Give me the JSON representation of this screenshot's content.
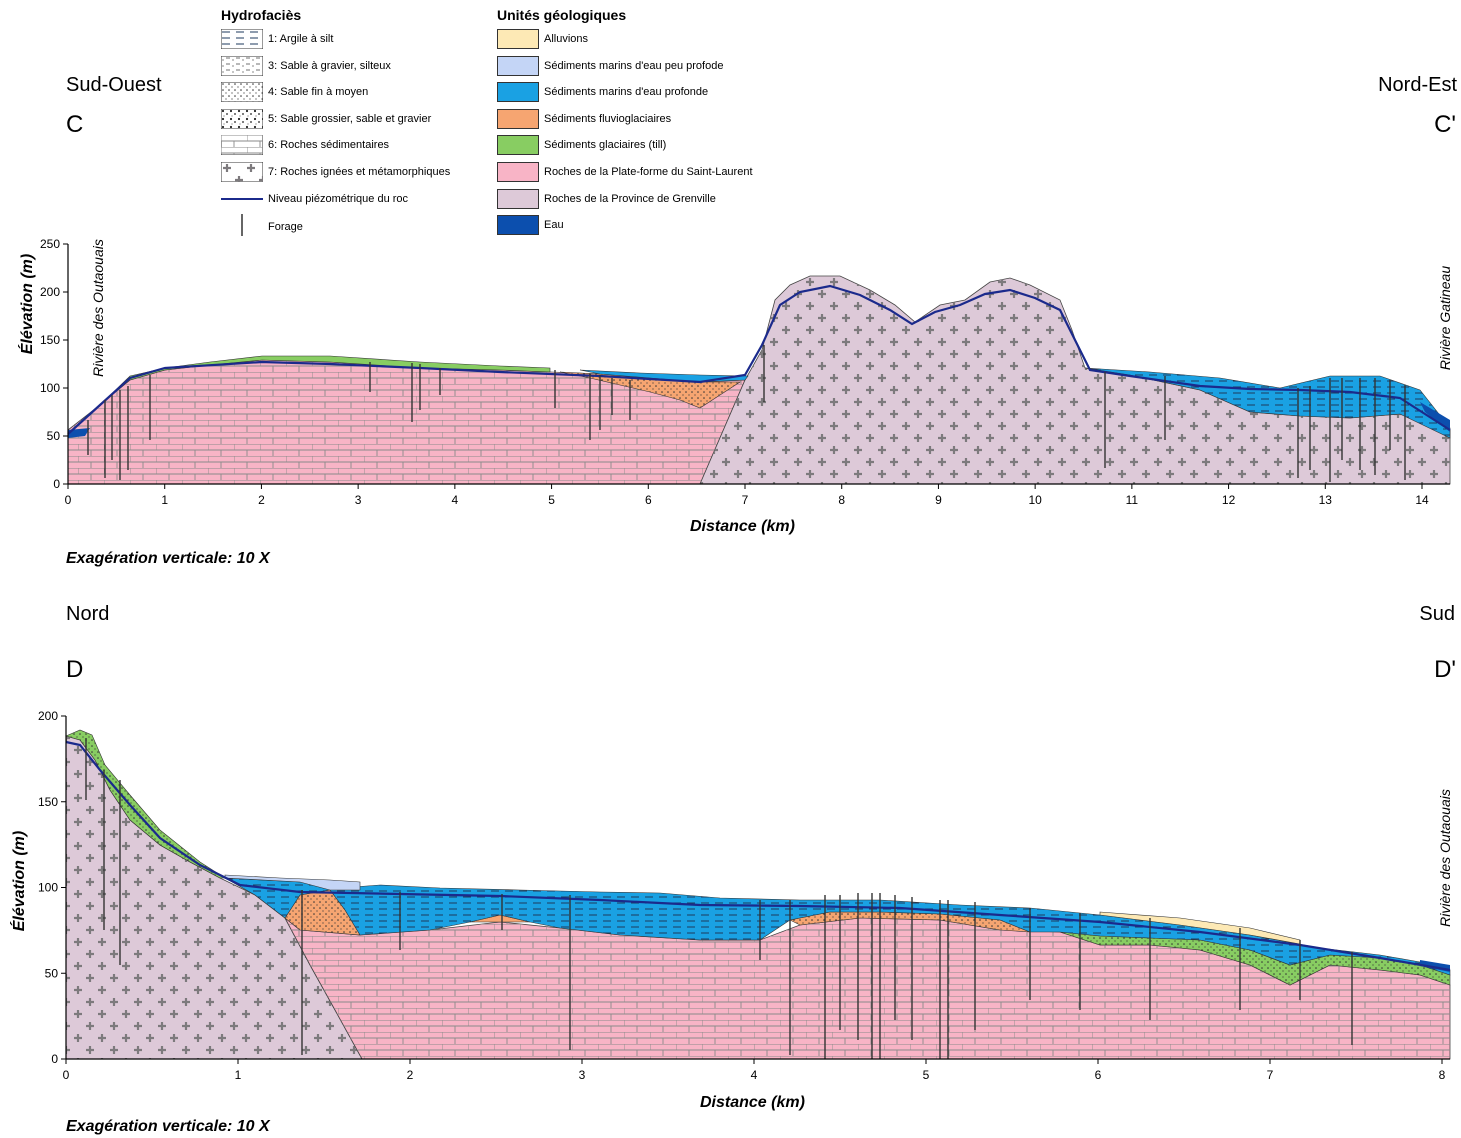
{
  "legend": {
    "hydro_title": "Hydrofaciès",
    "units_title": "Unités géologiques",
    "hydro_items": [
      {
        "label": "1: Argile à silt",
        "pattern": "clay"
      },
      {
        "label": "3: Sable à gravier, silteux",
        "pattern": "silty"
      },
      {
        "label": "4: Sable fin à moyen",
        "pattern": "finesand"
      },
      {
        "label": "5: Sable grossier, sable et gravier",
        "pattern": "coarsesand"
      },
      {
        "label": "6: Roches sédimentaires",
        "pattern": "brick"
      },
      {
        "label": "7: Roches ignées et métamorphiques",
        "pattern": "cross"
      }
    ],
    "piezo_label": "Niveau piézométrique du roc",
    "forage_label": "Forage",
    "unit_items": [
      {
        "label": "Alluvions",
        "color": "#fde9b5"
      },
      {
        "label": "Sédiments marins d'eau peu profode",
        "color": "#c4d5f6"
      },
      {
        "label": "Sédiments marins d'eau profonde",
        "color": "#1aa1e3"
      },
      {
        "label": "Sédiments fluvioglaciaires",
        "color": "#f6a571"
      },
      {
        "label": "Sédiments glaciaires (till)",
        "color": "#88cd62"
      },
      {
        "label": "Roches de la Plate-forme du Saint-Laurent",
        "color": "#f8b4c6"
      },
      {
        "label": "Roches de la Province de Grenville",
        "color": "#ddc9d8"
      },
      {
        "label": "Eau",
        "color": "#0c4fae"
      }
    ]
  },
  "colors": {
    "piezo": "#1b2a8c",
    "well": "#333333",
    "outline": "#111111"
  },
  "section_c": {
    "left_orientation": "Sud-Ouest",
    "right_orientation": "Nord-Est",
    "left_label": "C",
    "right_label": "C'",
    "ylabel": "Élévation (m)",
    "xlabel": "Distance (km)",
    "y_ticks": [
      "0",
      "50",
      "100",
      "150",
      "200",
      "250"
    ],
    "x_ticks": [
      "0",
      "1",
      "2",
      "3",
      "4",
      "5",
      "6",
      "7",
      "8",
      "9",
      "10",
      "11",
      "12",
      "13",
      "14"
    ],
    "river_left": "Rivière des Outaouais",
    "river_right": "Rivière Gatineau",
    "exaggeration": "Exagération verticale: 10 X"
  },
  "section_d": {
    "left_orientation": "Nord",
    "right_orientation": "Sud",
    "left_label": "D",
    "right_label": "D'",
    "ylabel": "Élévation (m)",
    "xlabel": "Distance (km)",
    "y_ticks": [
      "0",
      "50",
      "100",
      "150",
      "200"
    ],
    "x_ticks": [
      "0",
      "1",
      "2",
      "3",
      "4",
      "5",
      "6",
      "7",
      "8"
    ],
    "river_right": "Rivière des Outaouais",
    "exaggeration": "Exagération verticale: 10 X"
  }
}
